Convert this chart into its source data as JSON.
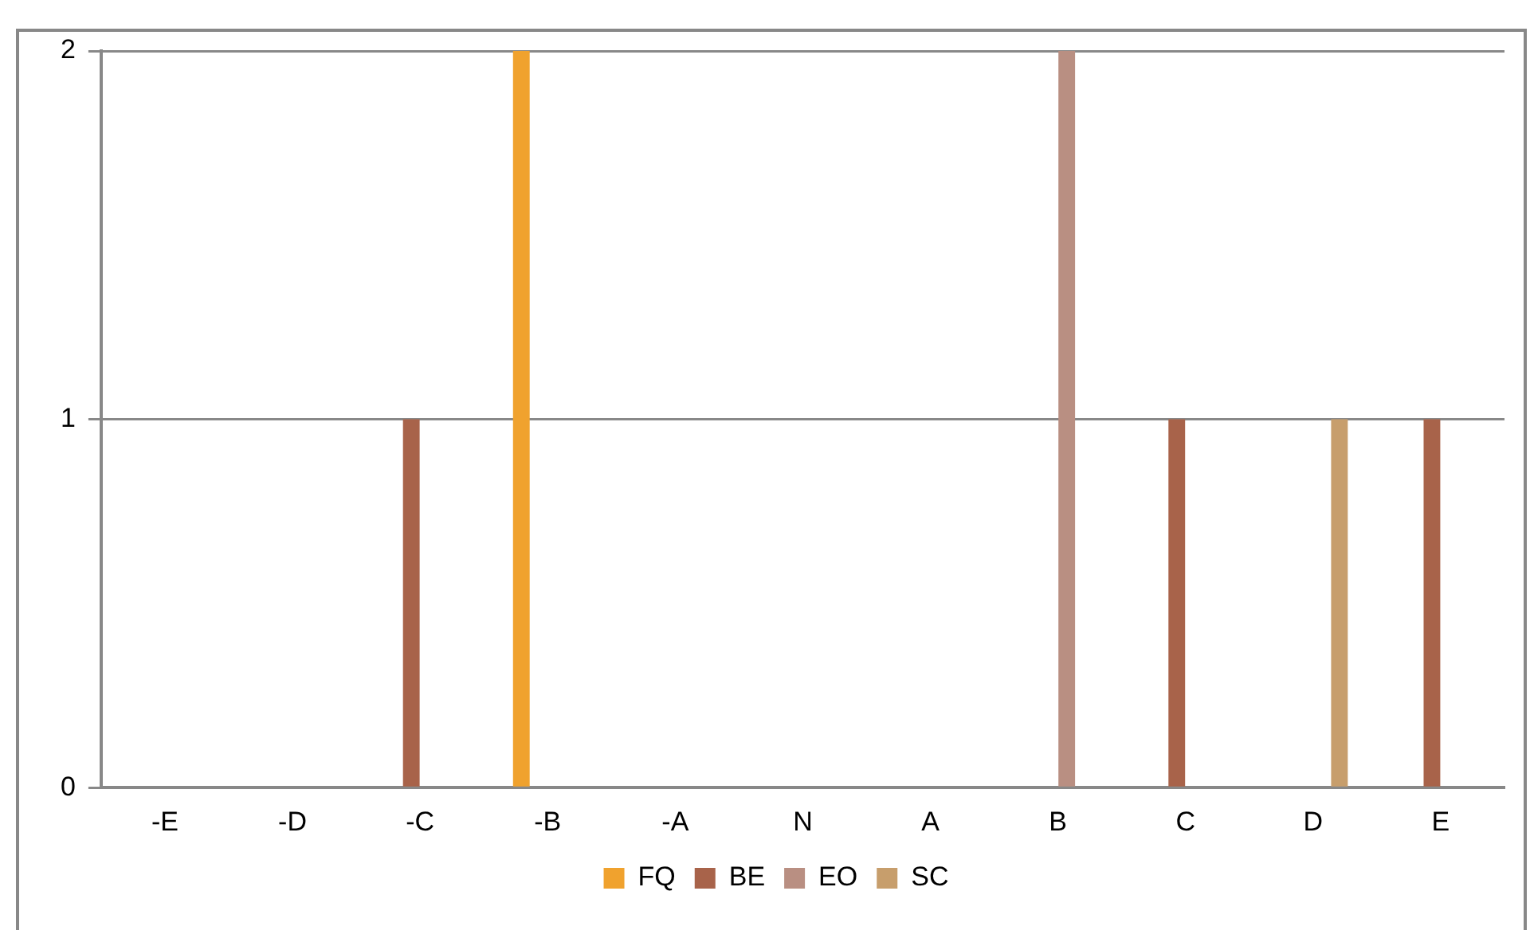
{
  "chart_data": {
    "type": "bar",
    "categories": [
      "-E",
      "-D",
      "-C",
      "-B",
      "-A",
      "N",
      "A",
      "B",
      "C",
      "D",
      "E"
    ],
    "series": [
      {
        "name": "FQ",
        "color": "#f0a22e",
        "values": [
          0,
          0,
          0,
          2,
          0,
          0,
          0,
          0,
          0,
          0,
          0
        ]
      },
      {
        "name": "BE",
        "color": "#a8634a",
        "values": [
          0,
          0,
          1,
          0,
          0,
          0,
          0,
          0,
          1,
          0,
          1
        ]
      },
      {
        "name": "EO",
        "color": "#b98f82",
        "values": [
          0,
          0,
          0,
          0,
          0,
          0,
          0,
          2,
          0,
          0,
          0
        ]
      },
      {
        "name": "SC",
        "color": "#c79e6c",
        "values": [
          0,
          0,
          0,
          0,
          0,
          0,
          0,
          0,
          0,
          1,
          0
        ]
      }
    ],
    "ylim": [
      0,
      2
    ],
    "yticks": [
      0,
      1,
      2
    ],
    "grid": "y",
    "legend": "bottom"
  }
}
